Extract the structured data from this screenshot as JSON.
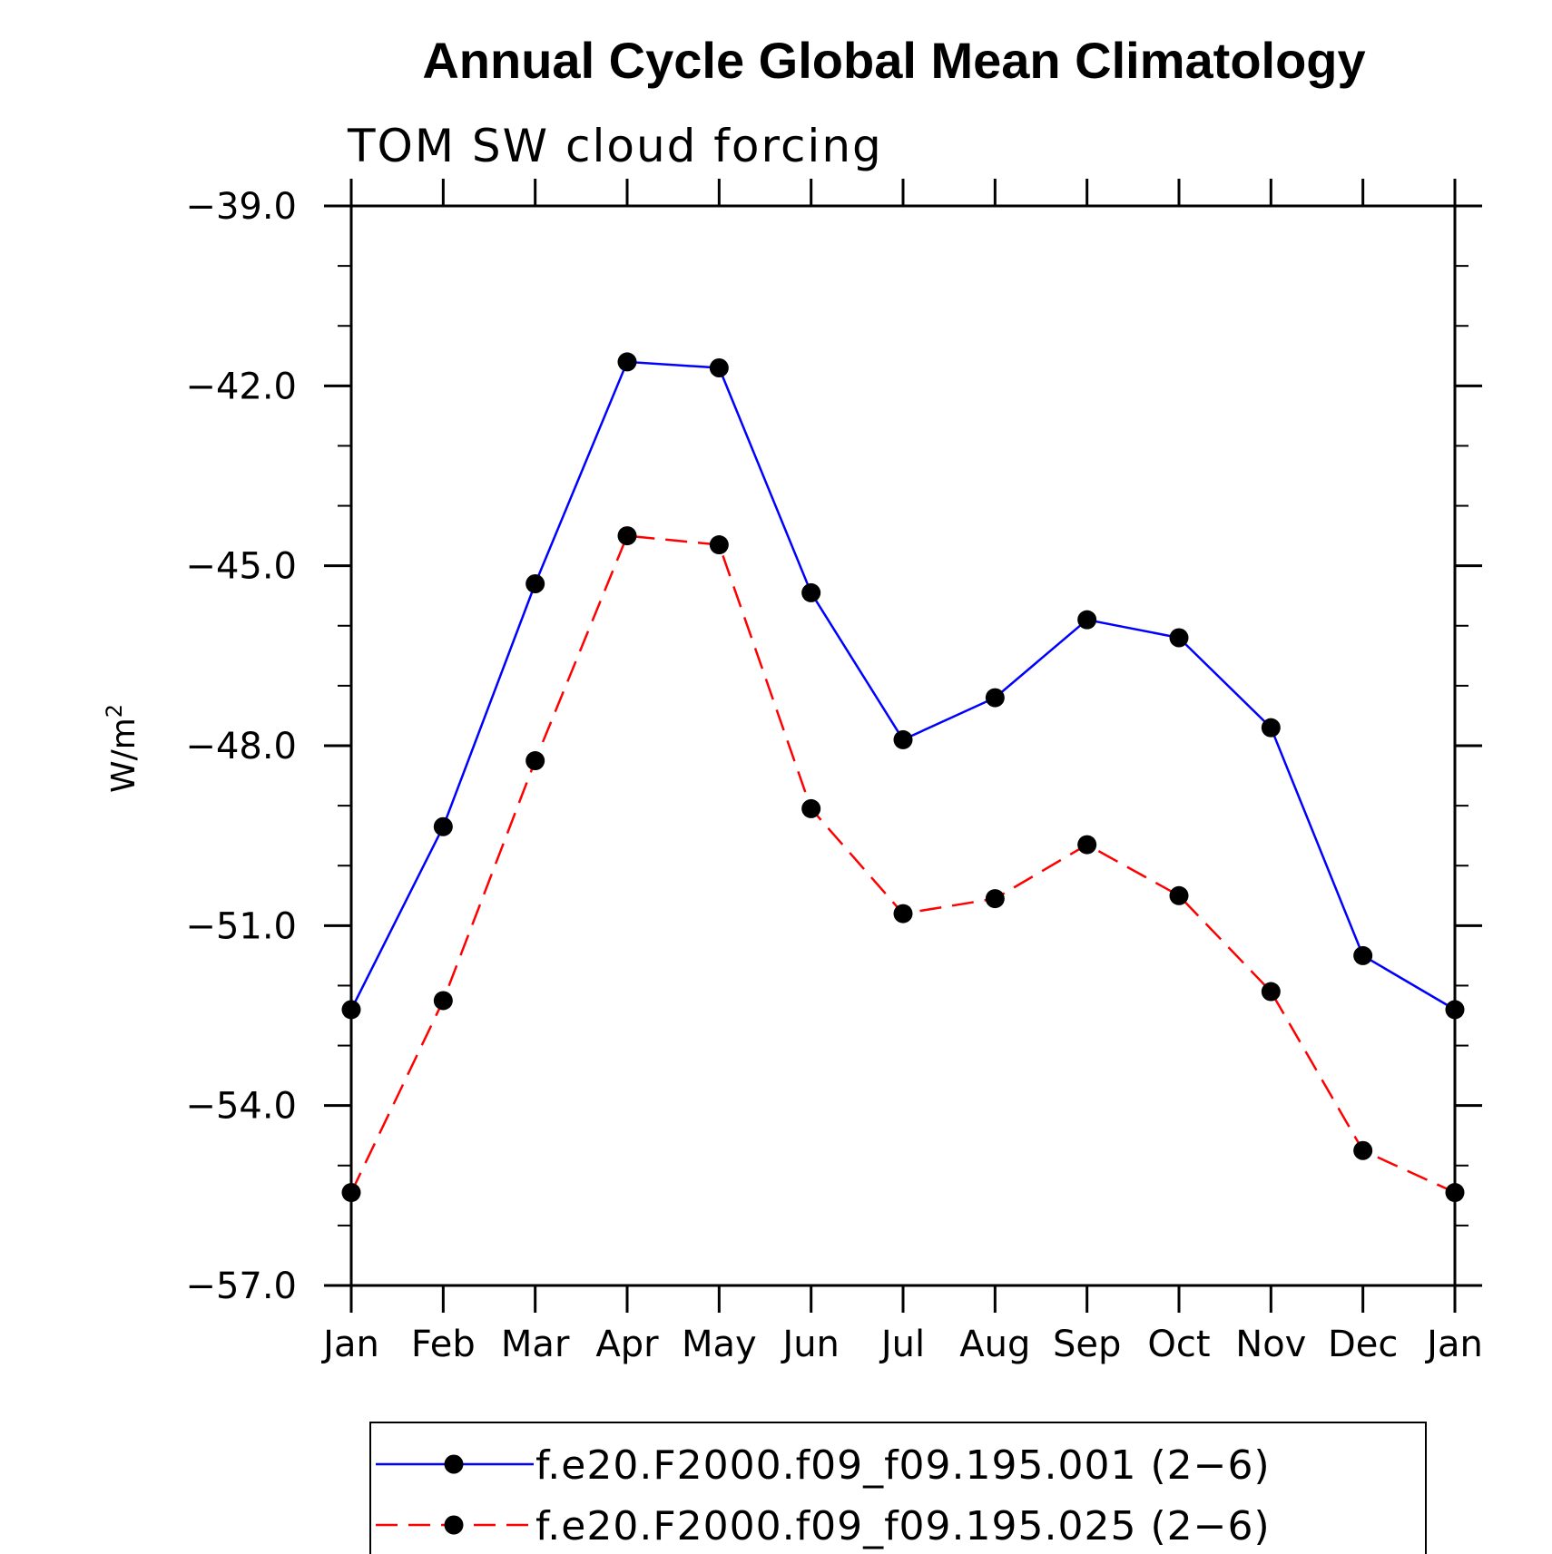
{
  "chart_data": {
    "type": "line",
    "title": "Annual Cycle Global Mean Climatology",
    "subtitle": "TOM SW cloud forcing",
    "ylabel": "W/m",
    "ylabel_superscript": "2",
    "xlabel": "",
    "categories": [
      "Jan",
      "Feb",
      "Mar",
      "Apr",
      "May",
      "Jun",
      "Jul",
      "Aug",
      "Sep",
      "Oct",
      "Nov",
      "Dec",
      "Jan"
    ],
    "ylim": [
      -57.0,
      -39.0
    ],
    "yticks": [
      -39.0,
      -42.0,
      -45.0,
      -48.0,
      -51.0,
      -54.0,
      -57.0
    ],
    "ytick_labels": [
      "−39.0",
      "−42.0",
      "−45.0",
      "−48.0",
      "−51.0",
      "−54.0",
      "−57.0"
    ],
    "series": [
      {
        "name": "f.e20.F2000.f09_f09.195.001 (2−6)",
        "color": "#0000ff",
        "dash": "solid",
        "values": [
          -52.4,
          -49.35,
          -45.3,
          -41.6,
          -41.7,
          -45.45,
          -47.9,
          -47.2,
          -45.9,
          -46.2,
          -47.7,
          -51.5,
          -52.4
        ]
      },
      {
        "name": "f.e20.F2000.f09_f09.195.025 (2−6)",
        "color": "#ff0000",
        "dash": "dashed",
        "values": [
          -55.45,
          -52.25,
          -48.25,
          -44.5,
          -44.65,
          -49.05,
          -50.8,
          -50.55,
          -49.65,
          -50.5,
          -52.1,
          -54.75,
          -55.45
        ]
      }
    ],
    "legend_position": "bottom"
  }
}
